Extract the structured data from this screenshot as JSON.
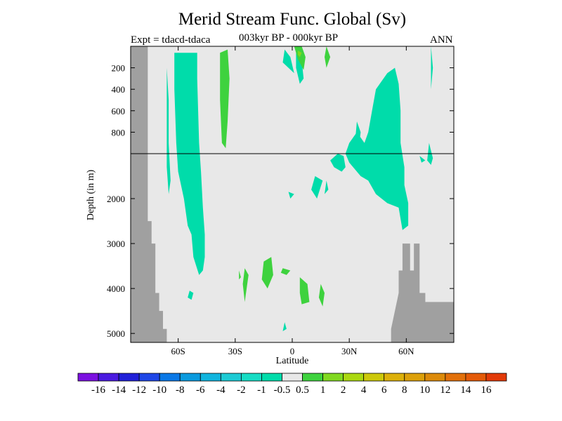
{
  "chart_data": {
    "type": "heatmap",
    "title": "Merid Stream Func. Global (Sv)",
    "left_annotation": "Expt = tdacd-tdaca",
    "center_annotation": "003kyr BP - 000kyr BP",
    "right_annotation": "ANN",
    "xlabel": "Latitude",
    "ylabel": "Depth (in m)",
    "x_ticks": [
      {
        "value": -60,
        "label": "60S"
      },
      {
        "value": -30,
        "label": "30S"
      },
      {
        "value": 0,
        "label": "0"
      },
      {
        "value": 30,
        "label": "30N"
      },
      {
        "value": 60,
        "label": "60N"
      }
    ],
    "xlim": [
      -85,
      85
    ],
    "y_ticks_upper": [
      {
        "value": 200,
        "label": "200"
      },
      {
        "value": 400,
        "label": "400"
      },
      {
        "value": 600,
        "label": "600"
      },
      {
        "value": 800,
        "label": "800"
      }
    ],
    "y_ticks_lower": [
      {
        "value": 2000,
        "label": "2000"
      },
      {
        "value": 3000,
        "label": "3000"
      },
      {
        "value": 4000,
        "label": "4000"
      },
      {
        "value": 5000,
        "label": "5000"
      }
    ],
    "ylim_upper": [
      0,
      1000
    ],
    "ylim_lower": [
      1000,
      5200
    ],
    "colorbar_levels": [
      "-16",
      "-14",
      "-12",
      "-10",
      "-8",
      "-6",
      "-4",
      "-2",
      "-1",
      "-0.5",
      "0.5",
      "1",
      "2",
      "4",
      "6",
      "8",
      "10",
      "12",
      "14",
      "16"
    ],
    "colorbar_colors": [
      "#7b10e0",
      "#4a1ae0",
      "#2020d8",
      "#1e46e6",
      "#0a78e6",
      "#0a9ade",
      "#10b4de",
      "#1ccad4",
      "#16dcc4",
      "#00dcaa",
      "#e8e8e8",
      "#3ed23e",
      "#80d820",
      "#aad810",
      "#ccc80a",
      "#dcb00a",
      "#dca00a",
      "#dc8a0a",
      "#e2700a",
      "#e45a08",
      "#e23a08"
    ],
    "colors": {
      "background": "#e8e8e8",
      "land": "#a0a0a0",
      "negative_weak": "#00dcaa",
      "positive_weak": "#3ed23e",
      "positive_medium": "#80d820"
    },
    "topography": [
      [
        -85,
        0
      ],
      [
        -78,
        0
      ],
      [
        -76,
        2500
      ],
      [
        -74,
        3000
      ],
      [
        -72,
        4100
      ],
      [
        -70,
        4500
      ],
      [
        -68,
        4900
      ],
      [
        -66,
        5200
      ]
    ],
    "topography_north": [
      [
        52,
        5200
      ],
      [
        52,
        4900
      ],
      [
        54,
        4500
      ],
      [
        56,
        4100
      ],
      [
        56,
        3600
      ],
      [
        58,
        3600
      ],
      [
        58,
        3000
      ],
      [
        62,
        3000
      ],
      [
        62,
        3600
      ],
      [
        64,
        3600
      ],
      [
        64,
        3000
      ],
      [
        67,
        3000
      ],
      [
        67,
        4100
      ],
      [
        70,
        4100
      ],
      [
        70,
        4300
      ],
      [
        85,
        4300
      ],
      [
        85,
        5200
      ]
    ],
    "regions": [
      {
        "sign": "negative",
        "range": "-1 to -0.5",
        "points": [
          [
            -62,
            60
          ],
          [
            -50,
            60
          ],
          [
            -50,
            300
          ],
          [
            -49,
            900
          ],
          [
            -48,
            1400
          ],
          [
            -47,
            2200
          ],
          [
            -46,
            2800
          ],
          [
            -46,
            3300
          ],
          [
            -47,
            3600
          ],
          [
            -49,
            3700
          ],
          [
            -52,
            3300
          ],
          [
            -53,
            2800
          ],
          [
            -55,
            2600
          ],
          [
            -57,
            2000
          ],
          [
            -60,
            1400
          ],
          [
            -61,
            900
          ],
          [
            -62,
            400
          ]
        ]
      },
      {
        "sign": "negative",
        "range": "-1 to -0.5",
        "points": [
          [
            -66,
            200
          ],
          [
            -65,
            500
          ],
          [
            -65,
            900
          ],
          [
            -64,
            1600
          ],
          [
            -65,
            1900
          ],
          [
            -66,
            1300
          ],
          [
            -66,
            700
          ]
        ]
      },
      {
        "sign": "negative",
        "range": "-1 to -0.5",
        "points": [
          [
            -54,
            4050
          ],
          [
            -52,
            4100
          ],
          [
            -53,
            4250
          ],
          [
            -55,
            4200
          ]
        ]
      },
      {
        "sign": "negative",
        "range": "-1 to -0.5",
        "points": [
          [
            -4,
            30
          ],
          [
            -1,
            100
          ],
          [
            1,
            250
          ],
          [
            -2,
            200
          ],
          [
            -5,
            150
          ]
        ]
      },
      {
        "sign": "negative",
        "range": "-1 to -0.5",
        "points": [
          [
            2,
            10
          ],
          [
            5,
            130
          ],
          [
            6,
            300
          ],
          [
            4,
            350
          ],
          [
            2,
            200
          ]
        ]
      },
      {
        "sign": "negative",
        "range": "-1 to -0.5",
        "points": [
          [
            44,
            400
          ],
          [
            50,
            250
          ],
          [
            54,
            200
          ],
          [
            56,
            350
          ],
          [
            57,
            600
          ],
          [
            57,
            900
          ],
          [
            59,
            1300
          ],
          [
            59,
            1700
          ],
          [
            61,
            2100
          ],
          [
            61,
            2600
          ],
          [
            58,
            2700
          ],
          [
            56,
            2200
          ],
          [
            50,
            2100
          ],
          [
            44,
            1900
          ],
          [
            40,
            1600
          ],
          [
            36,
            1500
          ],
          [
            30,
            1200
          ],
          [
            28,
            1000
          ],
          [
            30,
            900
          ],
          [
            34,
            800
          ],
          [
            38,
            900
          ],
          [
            40,
            800
          ],
          [
            42,
            600
          ]
        ]
      },
      {
        "sign": "negative",
        "range": "-1 to -0.5",
        "points": [
          [
            24,
            1000
          ],
          [
            27,
            1050
          ],
          [
            28,
            1300
          ],
          [
            26,
            1400
          ],
          [
            22,
            1300
          ],
          [
            20,
            1150
          ]
        ]
      },
      {
        "sign": "negative",
        "range": "-1 to -0.5",
        "points": [
          [
            34,
            700
          ],
          [
            36,
            800
          ],
          [
            35,
            950
          ],
          [
            33,
            900
          ]
        ]
      },
      {
        "sign": "negative",
        "range": "-1 to -0.5",
        "points": [
          [
            12,
            1500
          ],
          [
            16,
            1600
          ],
          [
            13,
            2000
          ],
          [
            10,
            1800
          ]
        ]
      },
      {
        "sign": "negative",
        "range": "-1 to -0.5",
        "points": [
          [
            18,
            1600
          ],
          [
            19,
            1800
          ],
          [
            17,
            1900
          ]
        ]
      },
      {
        "sign": "negative",
        "range": "-1 to -0.5",
        "points": [
          [
            -2,
            1850
          ],
          [
            1,
            1900
          ],
          [
            -1,
            2000
          ]
        ]
      },
      {
        "sign": "negative",
        "range": "-1 to -0.5",
        "points": [
          [
            -4,
            4750
          ],
          [
            -3,
            4900
          ],
          [
            -5,
            4950
          ]
        ]
      },
      {
        "sign": "negative",
        "range": "-1 to -0.5",
        "points": [
          [
            67,
            1050
          ],
          [
            70,
            1150
          ],
          [
            68,
            1200
          ]
        ]
      },
      {
        "sign": "negative",
        "range": "-1 to -0.5",
        "points": [
          [
            72,
            900
          ],
          [
            74,
            1100
          ],
          [
            73,
            1250
          ],
          [
            71,
            1150
          ]
        ]
      },
      {
        "sign": "negative",
        "range": "-1 to -0.5",
        "points": [
          [
            73,
            0
          ],
          [
            74,
            200
          ],
          [
            73,
            400
          ]
        ]
      },
      {
        "sign": "positive",
        "range": "0.5 to 1",
        "points": [
          [
            -38,
            60
          ],
          [
            -34,
            30
          ],
          [
            -33,
            300
          ],
          [
            -34,
            700
          ],
          [
            -35,
            950
          ],
          [
            -37,
            900
          ],
          [
            -38,
            500
          ]
        ]
      },
      {
        "sign": "positive",
        "range": "0.5 to 1",
        "points": [
          [
            1,
            0
          ],
          [
            5,
            0
          ],
          [
            7,
            100
          ],
          [
            6,
            220
          ],
          [
            3,
            120
          ]
        ]
      },
      {
        "sign": "positive",
        "range": "0.5 to 1",
        "points": [
          [
            18,
            0
          ],
          [
            20,
            100
          ],
          [
            18,
            200
          ],
          [
            17,
            100
          ]
        ]
      },
      {
        "sign": "positive",
        "range": "0.5 to 1",
        "points": [
          [
            -15,
            3400
          ],
          [
            -11,
            3300
          ],
          [
            -10,
            3700
          ],
          [
            -13,
            4000
          ],
          [
            -16,
            3800
          ]
        ]
      },
      {
        "sign": "positive",
        "range": "0.5 to 1",
        "points": [
          [
            -5,
            3550
          ],
          [
            -1,
            3600
          ],
          [
            -3,
            3700
          ],
          [
            -6,
            3650
          ]
        ]
      },
      {
        "sign": "positive",
        "range": "0.5 to 1",
        "points": [
          [
            4,
            3750
          ],
          [
            8,
            3900
          ],
          [
            9,
            4300
          ],
          [
            5,
            4350
          ],
          [
            4,
            4100
          ]
        ]
      },
      {
        "sign": "positive",
        "range": "0.5 to 1",
        "points": [
          [
            -25,
            3550
          ],
          [
            -23,
            3700
          ],
          [
            -24,
            4000
          ],
          [
            -25,
            4300
          ],
          [
            -26,
            3900
          ]
        ]
      },
      {
        "sign": "positive",
        "range": "0.5 to 1",
        "points": [
          [
            -28,
            3600
          ],
          [
            -27,
            3750
          ],
          [
            -28,
            3800
          ]
        ]
      },
      {
        "sign": "positive",
        "range": "0.5 to 1",
        "points": [
          [
            15,
            3900
          ],
          [
            17,
            4100
          ],
          [
            16,
            4400
          ],
          [
            14,
            4200
          ]
        ]
      },
      {
        "sign": "positive",
        "range": "1 to 2",
        "points": [
          [
            3,
            40
          ],
          [
            5,
            60
          ],
          [
            4,
            100
          ],
          [
            3,
            80
          ]
        ]
      }
    ]
  }
}
